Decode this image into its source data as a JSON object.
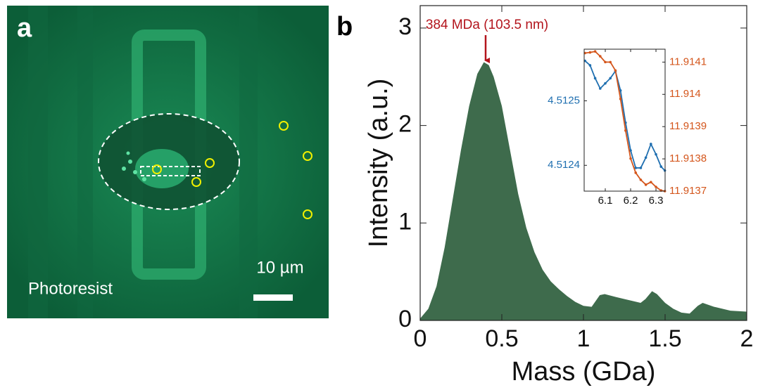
{
  "image_panel": {
    "label": "a",
    "caption": "Photoresist",
    "scale_bar": "10 µm"
  },
  "chart_data": [
    {
      "type": "area",
      "panel_label": "b",
      "x_label": "Mass (GDa)",
      "y_label": "Intensity (a.u.)",
      "annotation": "384 MDa (103.5 nm)",
      "color": "#3e6b4c",
      "x": [
        0,
        0.05,
        0.1,
        0.15,
        0.2,
        0.25,
        0.3,
        0.35,
        0.39,
        0.42,
        0.45,
        0.5,
        0.55,
        0.6,
        0.65,
        0.7,
        0.75,
        0.8,
        0.85,
        0.9,
        0.95,
        1.0,
        1.05,
        1.1,
        1.13,
        1.2,
        1.3,
        1.35,
        1.38,
        1.42,
        1.45,
        1.5,
        1.55,
        1.6,
        1.65,
        1.7,
        1.73,
        1.8,
        1.9,
        2.0
      ],
      "values": [
        0.02,
        0.12,
        0.35,
        0.75,
        1.25,
        1.75,
        2.2,
        2.53,
        2.65,
        2.62,
        2.5,
        2.2,
        1.75,
        1.3,
        0.95,
        0.7,
        0.52,
        0.4,
        0.32,
        0.25,
        0.19,
        0.15,
        0.14,
        0.26,
        0.27,
        0.24,
        0.2,
        0.18,
        0.22,
        0.3,
        0.27,
        0.18,
        0.12,
        0.08,
        0.07,
        0.15,
        0.18,
        0.14,
        0.1,
        0.09
      ],
      "xlim": [
        0,
        2
      ],
      "ylim": [
        0,
        3.23
      ],
      "xticks": [
        0,
        0.5,
        1,
        1.5,
        2
      ],
      "yticks": [
        0,
        1,
        2,
        3
      ]
    },
    {
      "type": "line",
      "x": [
        6.02,
        6.04,
        6.06,
        6.08,
        6.1,
        6.12,
        6.14,
        6.16,
        6.18,
        6.2,
        6.22,
        6.24,
        6.26,
        6.28,
        6.3,
        6.32,
        6.335
      ],
      "series": [
        {
          "color": "#1f6fb0",
          "values": [
            4.512562,
            4.512555,
            4.512535,
            4.512519,
            4.512527,
            4.512535,
            4.512546,
            4.512516,
            4.512466,
            4.512423,
            4.512396,
            4.512396,
            4.512412,
            4.512433,
            4.512417,
            4.512398,
            4.512392
          ]
        },
        {
          "color": "#d4561c",
          "axis": "y2",
          "values": [
            11.914128,
            11.91413,
            11.914133,
            11.914118,
            11.9141,
            11.9141,
            11.914074,
            11.913986,
            11.913888,
            11.913801,
            11.913757,
            11.913735,
            11.91372,
            11.913728,
            11.913713,
            11.913702,
            11.9137
          ]
        }
      ],
      "xlim": [
        6.0167,
        6.336
      ],
      "ylim": [
        4.51236,
        4.51258
      ],
      "y2lim": [
        11.9137,
        11.91414
      ],
      "xticks": [
        6.1,
        6.2,
        6.3
      ],
      "yticks": [
        4.5124,
        4.5125
      ],
      "y2ticks": [
        11.9137,
        11.9138,
        11.9139,
        11.914,
        11.9141
      ]
    }
  ]
}
